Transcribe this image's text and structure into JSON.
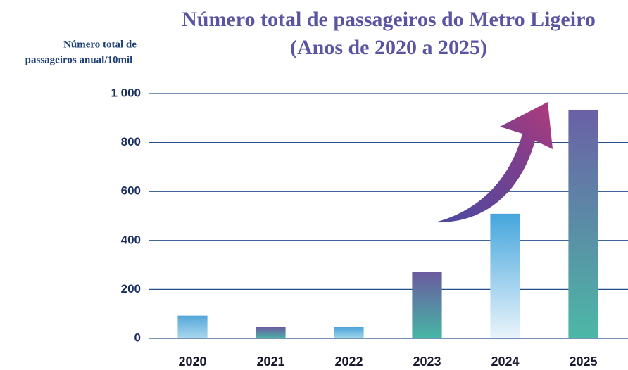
{
  "chart_data": {
    "type": "bar",
    "title": [
      "Número total de passageiros do Metro Ligeiro",
      "(Anos de 2020 a 2025)"
    ],
    "y_axis_label": [
      "Número total de",
      "passageiros anual/10mil"
    ],
    "categories": [
      "2020",
      "2021",
      "2022",
      "2023",
      "2024",
      "2025"
    ],
    "values": [
      93,
      46,
      46,
      273,
      509,
      934
    ],
    "colors": [
      [
        "#55a6d8",
        "#a9d8ee"
      ],
      [
        "#6b5a9f",
        "#4ab4a6"
      ],
      [
        "#4aa3d8",
        "#9fd8ea"
      ],
      [
        "#6b5a9f",
        "#46b6a5"
      ],
      [
        "#45a6dc",
        "#eaf4fb"
      ],
      [
        "#6a60a6",
        "#4cb8a6"
      ]
    ],
    "ylim": [
      0,
      1000
    ],
    "yticks": [
      0,
      200,
      400,
      600,
      800,
      {
        "value": 1000,
        "label": "1 000"
      }
    ],
    "grid": true,
    "grid_color": "#24518e"
  }
}
